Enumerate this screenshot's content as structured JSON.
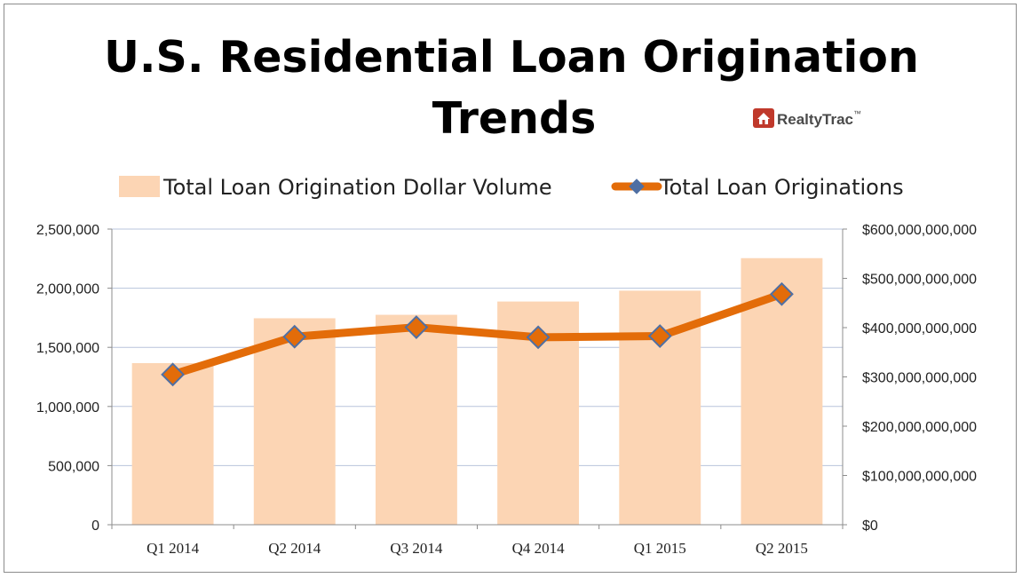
{
  "chart_data": {
    "type": "bar",
    "title_line1": "U.S. Residential Loan Origination",
    "title_line2": "Trends",
    "logo_text": "RealtyTrac",
    "logo_mark": "™",
    "categories": [
      "Q1 2014",
      "Q2 2014",
      "Q3 2014",
      "Q4 2014",
      "Q1 2015",
      "Q2 2015"
    ],
    "series": [
      {
        "name": "Total Loan Origination Dollar Volume",
        "kind": "bar",
        "axis": "right",
        "color": "#fcd5b4",
        "values": [
          328000000000,
          419000000000,
          426000000000,
          453000000000,
          475000000000,
          541000000000
        ]
      },
      {
        "name": "Total Loan Originations",
        "kind": "line",
        "axis": "left",
        "color": "#e36c09",
        "marker_color": "#4f6fa3",
        "values": [
          1270000,
          1590000,
          1670000,
          1585000,
          1595000,
          1950000
        ]
      }
    ],
    "left_axis": {
      "min": 0,
      "max": 2500000,
      "step": 500000,
      "tick_labels": [
        "0",
        "500,000",
        "1,000,000",
        "1,500,000",
        "2,000,000",
        "2,500,000"
      ]
    },
    "right_axis": {
      "min": 0,
      "max": 600000000000,
      "step": 100000000000,
      "tick_labels": [
        "$0",
        "$100,000,000,000",
        "$200,000,000,000",
        "$300,000,000,000",
        "$400,000,000,000",
        "$500,000,000,000",
        "$600,000,000,000"
      ]
    },
    "grid": true,
    "grid_color": "#b8c4dc",
    "legend_position": "top"
  }
}
